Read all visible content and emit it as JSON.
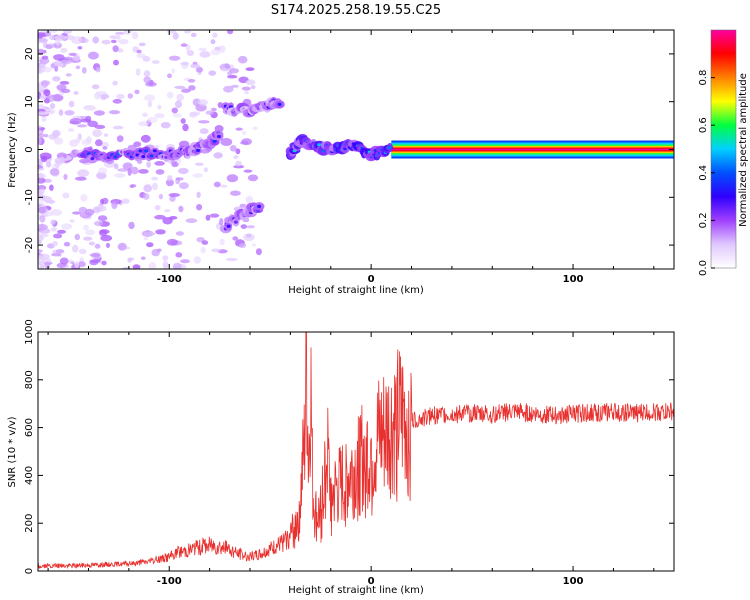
{
  "title": "S174.2025.258.19.55.C25",
  "chart_data": [
    {
      "type": "heatmap",
      "title": "",
      "xlabel": "Height of straight line (km)",
      "ylabel": "Frequency (Hz)",
      "xlim": [
        -165,
        150
      ],
      "ylim": [
        -25,
        25
      ],
      "xticks": [
        -100,
        0,
        100
      ],
      "yticks": [
        -20,
        -10,
        0,
        10,
        20
      ],
      "ridges": [
        {
          "name": "carrier",
          "x": [
            10,
            150
          ],
          "y": [
            0,
            0
          ],
          "amplitude": 1.0
        },
        {
          "name": "main-trail",
          "x": [
            -143,
            -120,
            -100,
            -90,
            -80,
            -75
          ],
          "y": [
            -1.5,
            -0.8,
            -1.0,
            -0.5,
            1.5,
            3.0
          ],
          "amplitude": 0.35
        },
        {
          "name": "upper-branch",
          "x": [
            -72,
            -60,
            -50,
            -45
          ],
          "y": [
            8.5,
            8.0,
            9.5,
            10.0
          ],
          "amplitude": 0.3
        },
        {
          "name": "lower-branch",
          "x": [
            -72,
            -62,
            -55
          ],
          "y": [
            -16,
            -13,
            -12
          ],
          "amplitude": 0.3
        },
        {
          "name": "descending-segment",
          "x": [
            -40,
            -35,
            -30,
            -20,
            -10,
            0,
            10
          ],
          "y": [
            -1.0,
            2.0,
            1.0,
            0.0,
            1.0,
            -1.0,
            0.0
          ],
          "amplitude": 0.45
        }
      ],
      "colorbar": {
        "label": "Normalized spectral amplitude",
        "ticks": [
          0.0,
          0.2,
          0.4,
          0.6,
          0.8
        ],
        "range": [
          0,
          1
        ],
        "colors": [
          "#ffffff",
          "#e0c8ff",
          "#a040ff",
          "#3000ff",
          "#0050ff",
          "#00d0ff",
          "#00ff40",
          "#ffff00",
          "#ff8000",
          "#ff0000",
          "#ff00a0"
        ]
      }
    },
    {
      "type": "line",
      "title": "",
      "xlabel": "Height of straight line (km)",
      "ylabel": "SNR (10 * v/v)",
      "xlim": [
        -165,
        150
      ],
      "ylim": [
        0,
        1000
      ],
      "xticks": [
        -100,
        0,
        100
      ],
      "yticks": [
        0,
        200,
        400,
        600,
        800,
        1000
      ],
      "series": [
        {
          "name": "SNR",
          "color": "#e8312e",
          "x": [
            -165,
            -150,
            -140,
            -130,
            -120,
            -110,
            -100,
            -95,
            -90,
            -85,
            -80,
            -75,
            -70,
            -65,
            -60,
            -55,
            -50,
            -45,
            -40,
            -37,
            -35,
            -33,
            -32,
            -31,
            -30,
            -29,
            -28,
            -27,
            -25,
            -22,
            -20,
            -18,
            -15,
            -12,
            -10,
            -8,
            -5,
            -2,
            0,
            5,
            10,
            15,
            20,
            25,
            30,
            40,
            50,
            60,
            70,
            80,
            90,
            100,
            110,
            120,
            130,
            140,
            150
          ],
          "values": [
            20,
            22,
            25,
            28,
            30,
            40,
            60,
            80,
            90,
            100,
            110,
            105,
            90,
            70,
            60,
            70,
            90,
            110,
            140,
            200,
            300,
            500,
            900,
            400,
            800,
            350,
            250,
            220,
            240,
            500,
            300,
            320,
            340,
            380,
            400,
            420,
            450,
            480,
            500,
            540,
            580,
            610,
            630,
            640,
            650,
            655,
            660,
            655,
            665,
            660,
            650,
            658,
            662,
            665,
            660,
            668,
            665
          ]
        }
      ]
    }
  ]
}
